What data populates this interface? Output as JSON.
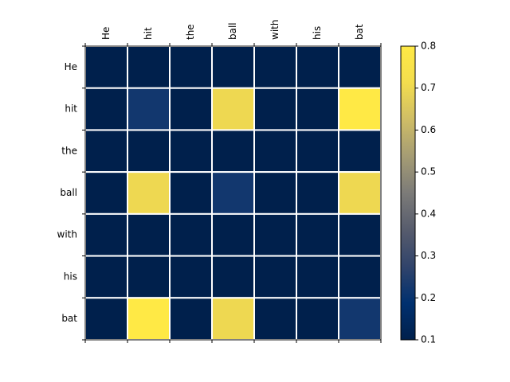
{
  "chart_data": {
    "type": "heatmap",
    "title": "",
    "xlabel": "",
    "ylabel": "",
    "x_labels": [
      "He",
      "hit",
      "the",
      "ball",
      "with",
      "his",
      "bat"
    ],
    "y_labels": [
      "He",
      "hit",
      "the",
      "ball",
      "with",
      "his",
      "bat"
    ],
    "values": [
      [
        0.1,
        0.1,
        0.1,
        0.1,
        0.1,
        0.1,
        0.1
      ],
      [
        0.1,
        0.22,
        0.1,
        0.7,
        0.1,
        0.1,
        0.8
      ],
      [
        0.1,
        0.1,
        0.1,
        0.1,
        0.1,
        0.1,
        0.1
      ],
      [
        0.1,
        0.7,
        0.1,
        0.22,
        0.1,
        0.1,
        0.7
      ],
      [
        0.1,
        0.1,
        0.1,
        0.1,
        0.1,
        0.1,
        0.1
      ],
      [
        0.1,
        0.1,
        0.1,
        0.1,
        0.1,
        0.1,
        0.1
      ],
      [
        0.1,
        0.8,
        0.1,
        0.7,
        0.1,
        0.1,
        0.22
      ]
    ],
    "colormap": "cividis",
    "colorbar": {
      "range": [
        0.1,
        0.8
      ],
      "ticks": [
        "0.1",
        "0.2",
        "0.3",
        "0.4",
        "0.5",
        "0.6",
        "0.7",
        "0.8"
      ]
    },
    "x_tick_position": "top",
    "grid": true,
    "grid_color": "#ffffff",
    "legend": "colorbar-right"
  }
}
